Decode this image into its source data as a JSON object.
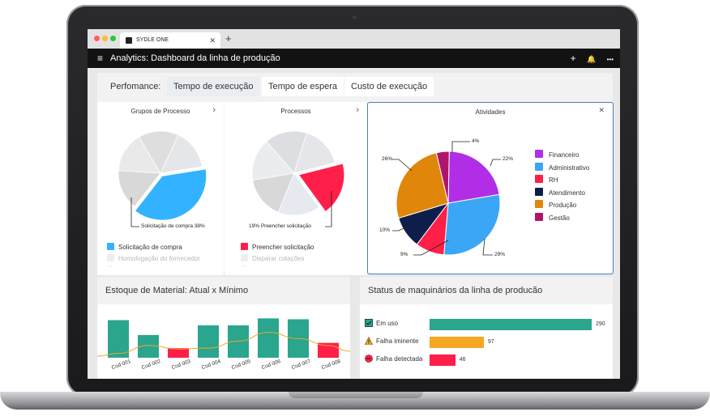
{
  "browser": {
    "tab_title": "SYDLE ONE",
    "tab_close": "✕",
    "new_tab": "+"
  },
  "app": {
    "title": "Analytics: Dashboard da linha de produção",
    "menu_icon": "menu-icon",
    "actions": [
      "+",
      "🔔",
      "•••"
    ]
  },
  "performance": {
    "label": "Perfomance:",
    "tabs": [
      {
        "label": "Tempo de execução",
        "active": true
      },
      {
        "label": "Tempo de espera",
        "active": false
      },
      {
        "label": "Custo de execução",
        "active": false
      }
    ]
  },
  "cards": {
    "grupos": {
      "title": "Grupos de Processo",
      "arrow": "›",
      "callout": "Solicitação de compra 38%",
      "legend": [
        {
          "label": "Solicitação de compra",
          "color": "#33b2ff",
          "faded": false
        },
        {
          "label": "Homologação do fornecedor",
          "color": "#e8e8e8",
          "faded": true
        }
      ],
      "more": "···"
    },
    "processos": {
      "title": "Processos",
      "arrow": "›",
      "callout": "19% Preencher solicitação",
      "legend": [
        {
          "label": "Preencher solicitação",
          "color": "#ff1f48",
          "faded": false
        },
        {
          "label": "Disparar cotações",
          "color": "#e8e8e8",
          "faded": true
        }
      ],
      "more": "···"
    },
    "atividades": {
      "title": "Atividades",
      "close": "✕"
    }
  },
  "chart_data": [
    {
      "type": "pie",
      "title": "Grupos de Processo",
      "labels": [
        "Solicitação de compra"
      ],
      "values": [
        38
      ],
      "callout": "Solicitação de compra 38%"
    },
    {
      "type": "pie",
      "title": "Processos",
      "labels": [
        "Preencher solicitação"
      ],
      "values": [
        19
      ],
      "callout": "19% Preencher solicitação"
    },
    {
      "type": "pie",
      "title": "Atividades",
      "legend_position": "right",
      "labels": [
        "Financeiro",
        "Administrativo",
        "RH",
        "Atendimento",
        "Produção",
        "Gestão"
      ],
      "values": [
        22,
        29,
        9,
        10,
        26,
        4
      ],
      "display_labels": [
        "22%",
        "29%",
        "9%",
        "10%",
        "26%",
        "4%"
      ],
      "colors": [
        "#b12ee6",
        "#3aa6f5",
        "#ff1f48",
        "#0e1e4a",
        "#e0860b",
        "#b0146a"
      ]
    },
    {
      "type": "bar",
      "title": "Estoque de Material: Atual x Mínimo",
      "categories": [
        "Cod 001",
        "Cod 002",
        "Cod 003",
        "Cod 004",
        "Cod 005",
        "Cod 006",
        "Cod 007",
        "Cod 008"
      ],
      "series": [
        {
          "values": [
            43,
            26,
            11,
            37,
            37,
            45,
            44,
            17
          ]
        },
        {
          "values": [
            5,
            14,
            10,
            11,
            19,
            29,
            22,
            14
          ]
        }
      ],
      "bar_colors": [
        "#2aa58e",
        "#2aa58e",
        "#ff1f48",
        "#2aa58e",
        "#2aa58e",
        "#2aa58e",
        "#2aa58e",
        "#ff1f48"
      ],
      "line_color": "#f5a623",
      "ylim": [
        0,
        50
      ]
    },
    {
      "type": "bar",
      "orientation": "horizontal",
      "title": "Status de maquinários da linha de producão",
      "categories": [
        "Em uso",
        "Falha iminente",
        "Falha detectada"
      ],
      "values": [
        290,
        97,
        46
      ],
      "colors": [
        "#2aa58e",
        "#f5a623",
        "#ff1f48"
      ]
    }
  ],
  "stock": {
    "title": "Estoque de Material: Atual x Mínimo"
  },
  "status": {
    "title": "Status de maquinários da linha de producão",
    "rows": [
      {
        "label": "Em uso",
        "value": "290",
        "icon": "checkbox-icon"
      },
      {
        "label": "Falha iminente",
        "value": "97",
        "icon": "warning-icon"
      },
      {
        "label": "Falha detectada",
        "value": "46",
        "icon": "error-icon"
      }
    ]
  }
}
